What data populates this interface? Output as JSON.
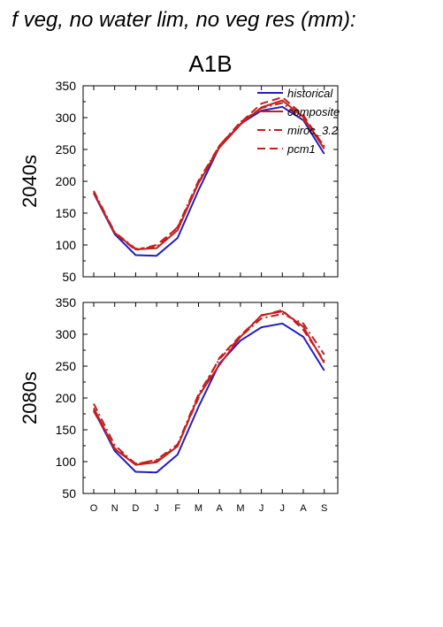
{
  "title": "f veg, no water lim, no veg res (mm):",
  "subtitle": "A1B",
  "chart_data": [
    {
      "type": "line",
      "row_label": "2040s",
      "categories": [
        "O",
        "N",
        "D",
        "J",
        "F",
        "M",
        "A",
        "M",
        "J",
        "J",
        "A",
        "S"
      ],
      "ylim": [
        50,
        350
      ],
      "yticks": [
        50,
        100,
        150,
        200,
        250,
        300,
        350
      ],
      "legend_position": "top-right",
      "series": [
        {
          "name": "historical",
          "color": "#1f1fbf",
          "dash": "solid",
          "values": [
            181,
            117,
            84,
            83,
            111,
            186,
            254,
            290,
            311,
            317,
            296,
            243
          ]
        },
        {
          "name": "composite",
          "color": "#c41e1e",
          "dash": "solid",
          "values": [
            182,
            119,
            93,
            95,
            123,
            197,
            253,
            289,
            316,
            327,
            301,
            251
          ]
        },
        {
          "name": "miroc_3.2",
          "color": "#c41e1e",
          "dash": "dashdot",
          "values": [
            185,
            120,
            94,
            97,
            128,
            201,
            256,
            293,
            315,
            323,
            297,
            256
          ]
        },
        {
          "name": "pcm1",
          "color": "#c41e1e",
          "dash": "dash",
          "values": [
            183,
            118,
            92,
            100,
            127,
            198,
            256,
            292,
            322,
            332,
            304,
            254
          ]
        }
      ]
    },
    {
      "type": "line",
      "row_label": "2080s",
      "categories": [
        "O",
        "N",
        "D",
        "J",
        "F",
        "M",
        "A",
        "M",
        "J",
        "J",
        "A",
        "S"
      ],
      "ylim": [
        50,
        350
      ],
      "yticks": [
        50,
        100,
        150,
        200,
        250,
        300,
        350
      ],
      "series": [
        {
          "name": "historical",
          "color": "#1f1fbf",
          "dash": "solid",
          "values": [
            181,
            117,
            84,
            83,
            111,
            186,
            254,
            290,
            311,
            317,
            296,
            243
          ]
        },
        {
          "name": "composite",
          "color": "#c41e1e",
          "dash": "solid",
          "values": [
            184,
            120,
            95,
            99,
            124,
            203,
            252,
            296,
            330,
            336,
            312,
            255
          ]
        },
        {
          "name": "miroc_3.2",
          "color": "#c41e1e",
          "dash": "dashdot",
          "values": [
            191,
            126,
            96,
            103,
            127,
            206,
            261,
            296,
            325,
            332,
            317,
            268
          ]
        },
        {
          "name": "pcm1",
          "color": "#c41e1e",
          "dash": "dash",
          "values": [
            179,
            121,
            97,
            101,
            125,
            200,
            263,
            298,
            329,
            338,
            307,
            258
          ]
        }
      ]
    }
  ]
}
